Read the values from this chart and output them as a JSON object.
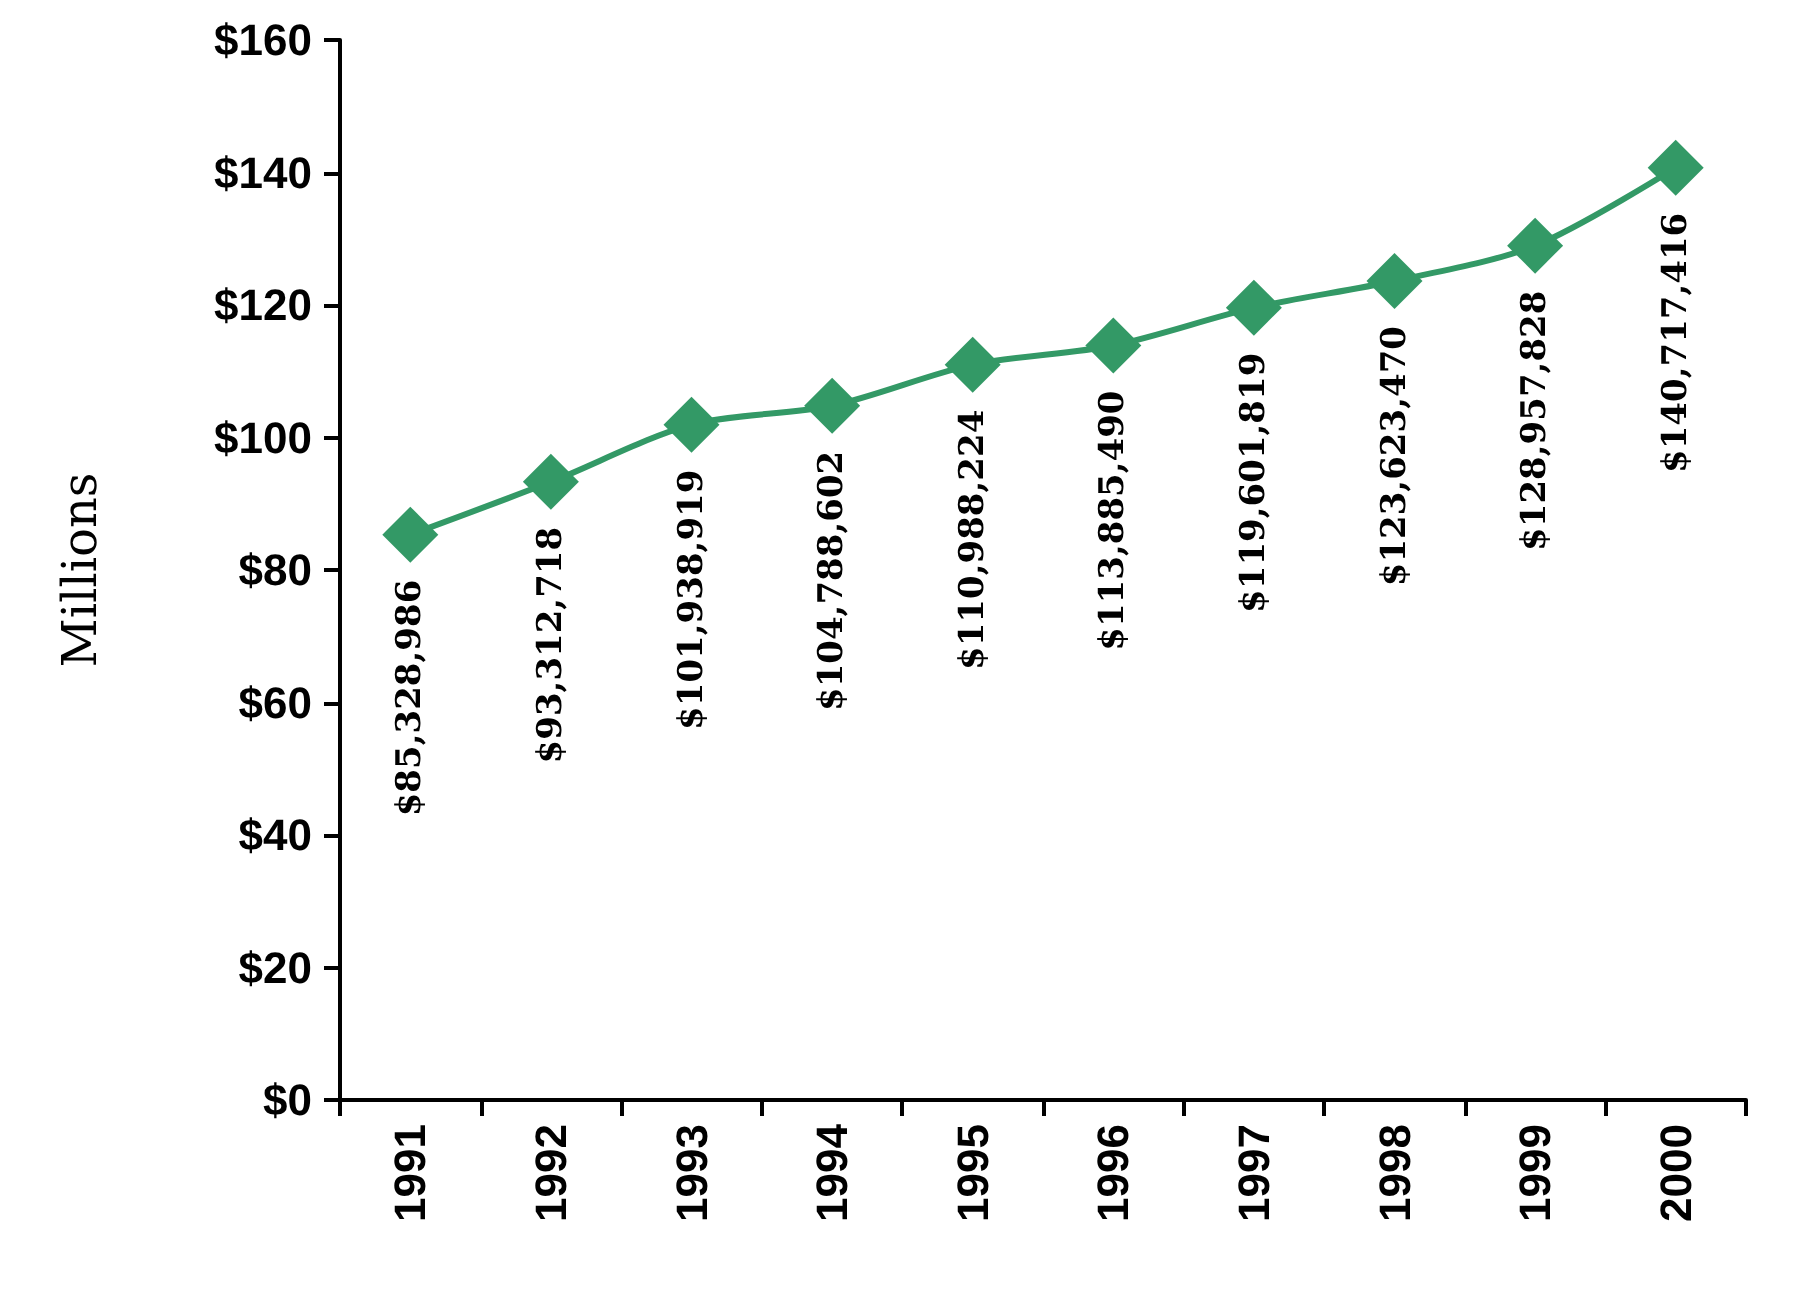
{
  "chart_data": {
    "type": "line",
    "ylabel": "Millions",
    "categories": [
      "1991",
      "1992",
      "1993",
      "1994",
      "1995",
      "1996",
      "1997",
      "1998",
      "1999",
      "2000"
    ],
    "series": [
      {
        "color": "#339966",
        "values": [
          85.33,
          93.31,
          101.94,
          104.79,
          110.99,
          113.89,
          119.6,
          123.62,
          128.96,
          140.72
        ]
      }
    ],
    "annotations": [
      {
        "text": "$85,328,986",
        "x": "1991",
        "y": 85.33
      },
      {
        "text": "$93,312,718",
        "x": "1992",
        "y": 93.31
      },
      {
        "text": "$101,938,919",
        "x": "1993",
        "y": 101.94
      },
      {
        "text": "$104,788,602",
        "x": "1994",
        "y": 104.79
      },
      {
        "text": "$110,988,224",
        "x": "1995",
        "y": 110.99
      },
      {
        "text": "$113,885,490",
        "x": "1996",
        "y": 113.89
      },
      {
        "text": "$119,601,819",
        "x": "1997",
        "y": 119.6
      },
      {
        "text": "$123,623,470",
        "x": "1998",
        "y": 123.62
      },
      {
        "text": "$128,957,828",
        "x": "1999",
        "y": 128.96
      },
      {
        "text": "$140,717,416",
        "x": "2000",
        "y": 140.72
      }
    ],
    "ylim": [
      0,
      160
    ],
    "yticks": [
      {
        "value": 0,
        "label": "$0"
      },
      {
        "value": 20,
        "label": "$20"
      },
      {
        "value": 40,
        "label": "$40"
      },
      {
        "value": 60,
        "label": "$60"
      },
      {
        "value": 80,
        "label": "$80"
      },
      {
        "value": 100,
        "label": "$100"
      },
      {
        "value": 120,
        "label": "$120"
      },
      {
        "value": 140,
        "label": "$140"
      },
      {
        "value": 160,
        "label": "$160"
      }
    ],
    "grid": false,
    "marker": "diamond",
    "line_style": "solid"
  }
}
